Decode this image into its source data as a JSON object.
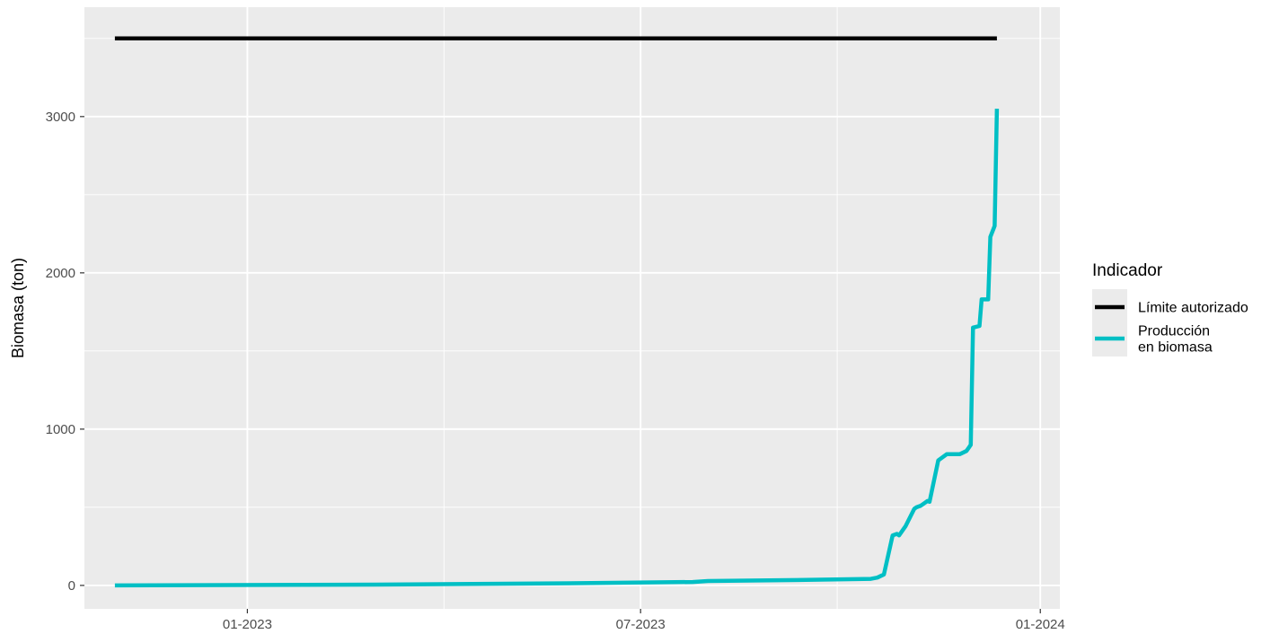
{
  "chart_data": {
    "type": "line",
    "title": "",
    "xlabel": "",
    "ylabel": "Biomasa (ton)",
    "x_type": "date",
    "xlim": [
      "2022-10-18",
      "2024-01-10"
    ],
    "ylim": [
      -150,
      3700
    ],
    "x_ticks": [
      {
        "value": "2023-01-01",
        "label": "01-2023"
      },
      {
        "value": "2023-07-01",
        "label": "07-2023"
      },
      {
        "value": "2024-01-01",
        "label": "01-2024"
      }
    ],
    "y_ticks": [
      {
        "value": 0,
        "label": "0"
      },
      {
        "value": 1000,
        "label": "1000"
      },
      {
        "value": 2000,
        "label": "2000"
      },
      {
        "value": 3000,
        "label": "3000"
      }
    ],
    "grid": true,
    "background": "#ebebeb",
    "legend": {
      "title": "Indicador",
      "position": "right",
      "entries": [
        {
          "series": "limite",
          "lines": [
            "Límite autorizado"
          ]
        },
        {
          "series": "produccion",
          "lines": [
            "Producción",
            "en biomasa"
          ]
        }
      ]
    },
    "series": [
      {
        "id": "limite",
        "name": "Límite autorizado",
        "color": "#000000",
        "x": [
          "2022-11-01",
          "2023-12-12"
        ],
        "y": [
          3500,
          3500
        ]
      },
      {
        "id": "produccion",
        "name": "Producción en biomasa",
        "color": "#00bfc4",
        "x": [
          "2022-11-01",
          "2023-03-01",
          "2023-05-15",
          "2023-07-25",
          "2023-08-01",
          "2023-09-15",
          "2023-10-15",
          "2023-10-18",
          "2023-10-21",
          "2023-10-25",
          "2023-10-27",
          "2023-10-28",
          "2023-10-30",
          "2023-10-31",
          "2023-11-04",
          "2023-11-05",
          "2023-11-07",
          "2023-11-08",
          "2023-11-10",
          "2023-11-11",
          "2023-11-15",
          "2023-11-19",
          "2023-11-23",
          "2023-11-25",
          "2023-11-28",
          "2023-11-29",
          "2023-11-30",
          "2023-12-01",
          "2023-12-04",
          "2023-12-05",
          "2023-12-06",
          "2023-12-07",
          "2023-12-08",
          "2023-12-09",
          "2023-12-11",
          "2023-12-12"
        ],
        "y": [
          0,
          5,
          12,
          22,
          28,
          35,
          42,
          50,
          70,
          320,
          330,
          320,
          360,
          380,
          490,
          500,
          510,
          520,
          540,
          535,
          800,
          840,
          840,
          840,
          860,
          880,
          900,
          1650,
          1660,
          1830,
          1830,
          1830,
          1830,
          2230,
          2300,
          3050
        ]
      }
    ]
  }
}
